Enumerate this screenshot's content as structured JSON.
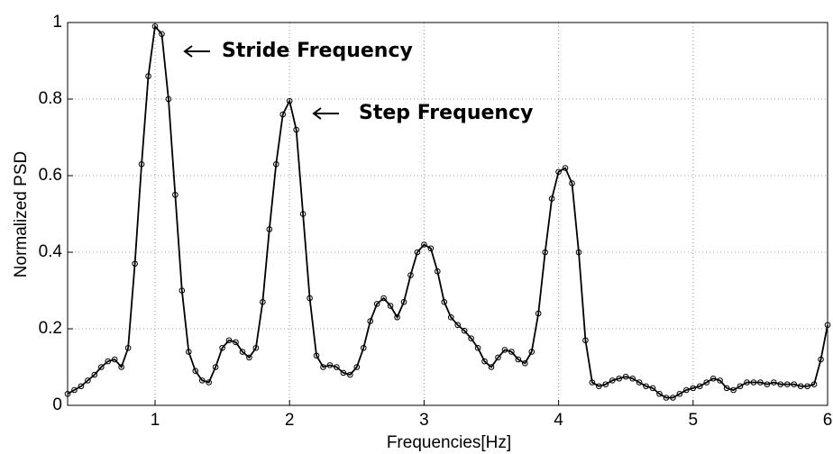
{
  "chart_data": {
    "type": "line",
    "x_label": "Frequencies[Hz]",
    "y_label": "Normalized PSD",
    "annotations": [
      "Stride Frequency",
      "Step Frequency"
    ],
    "xlim": [
      0.35,
      6
    ],
    "ylim": [
      0,
      1
    ],
    "xticks": [
      1,
      2,
      3,
      4,
      5,
      6
    ],
    "yticks": [
      0,
      0.2,
      0.4,
      0.6,
      0.8,
      1
    ],
    "grid": true,
    "x": [
      0.35,
      0.4,
      0.45,
      0.5,
      0.55,
      0.6,
      0.65,
      0.7,
      0.75,
      0.8,
      0.85,
      0.9,
      0.95,
      1.0,
      1.05,
      1.1,
      1.15,
      1.2,
      1.25,
      1.3,
      1.35,
      1.4,
      1.45,
      1.5,
      1.55,
      1.6,
      1.65,
      1.7,
      1.75,
      1.8,
      1.85,
      1.9,
      1.95,
      2.0,
      2.05,
      2.1,
      2.15,
      2.2,
      2.25,
      2.3,
      2.35,
      2.4,
      2.45,
      2.5,
      2.55,
      2.6,
      2.65,
      2.7,
      2.75,
      2.8,
      2.85,
      2.9,
      2.95,
      3.0,
      3.05,
      3.1,
      3.15,
      3.2,
      3.25,
      3.3,
      3.35,
      3.4,
      3.45,
      3.5,
      3.55,
      3.6,
      3.65,
      3.7,
      3.75,
      3.8,
      3.85,
      3.9,
      3.95,
      4.0,
      4.05,
      4.1,
      4.15,
      4.2,
      4.25,
      4.3,
      4.35,
      4.4,
      4.45,
      4.5,
      4.55,
      4.6,
      4.65,
      4.7,
      4.75,
      4.8,
      4.85,
      4.9,
      4.95,
      5.0,
      5.05,
      5.1,
      5.15,
      5.2,
      5.25,
      5.3,
      5.35,
      5.4,
      5.45,
      5.5,
      5.55,
      5.6,
      5.65,
      5.7,
      5.75,
      5.8,
      5.85,
      5.9,
      5.95,
      6.0
    ],
    "series": [
      {
        "color": "#000000",
        "values": [
          0.03,
          0.04,
          0.05,
          0.065,
          0.08,
          0.1,
          0.115,
          0.12,
          0.1,
          0.15,
          0.37,
          0.63,
          0.86,
          0.99,
          0.97,
          0.8,
          0.55,
          0.3,
          0.14,
          0.09,
          0.065,
          0.06,
          0.1,
          0.15,
          0.17,
          0.165,
          0.14,
          0.125,
          0.15,
          0.27,
          0.46,
          0.63,
          0.76,
          0.795,
          0.72,
          0.5,
          0.28,
          0.13,
          0.1,
          0.105,
          0.1,
          0.085,
          0.08,
          0.1,
          0.15,
          0.22,
          0.265,
          0.28,
          0.26,
          0.23,
          0.27,
          0.34,
          0.4,
          0.42,
          0.41,
          0.35,
          0.27,
          0.23,
          0.21,
          0.195,
          0.175,
          0.15,
          0.115,
          0.1,
          0.125,
          0.145,
          0.14,
          0.12,
          0.11,
          0.14,
          0.24,
          0.4,
          0.54,
          0.61,
          0.62,
          0.58,
          0.4,
          0.17,
          0.06,
          0.05,
          0.055,
          0.065,
          0.07,
          0.075,
          0.07,
          0.06,
          0.05,
          0.045,
          0.03,
          0.02,
          0.02,
          0.03,
          0.04,
          0.045,
          0.05,
          0.06,
          0.07,
          0.065,
          0.045,
          0.04,
          0.05,
          0.06,
          0.06,
          0.06,
          0.055,
          0.06,
          0.055,
          0.055,
          0.055,
          0.05,
          0.05,
          0.055,
          0.12,
          0.21
        ]
      }
    ]
  }
}
